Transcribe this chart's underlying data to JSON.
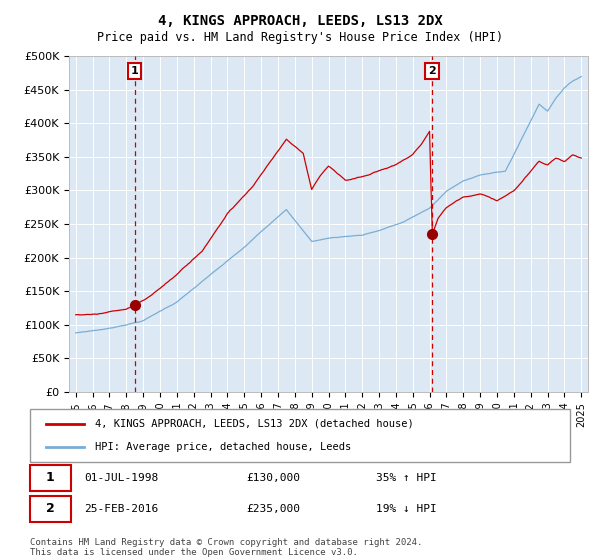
{
  "title": "4, KINGS APPROACH, LEEDS, LS13 2DX",
  "subtitle": "Price paid vs. HM Land Registry's House Price Index (HPI)",
  "bg_color": "#dce9f5",
  "red_line_color": "#cc0000",
  "blue_line_color": "#7aadd4",
  "marker_color": "#990000",
  "sale1_date_num": 1998.5,
  "sale1_price": 130000,
  "sale2_date_num": 2016.15,
  "sale2_price": 235000,
  "ylim": [
    0,
    500000
  ],
  "yticks": [
    0,
    50000,
    100000,
    150000,
    200000,
    250000,
    300000,
    350000,
    400000,
    450000,
    500000
  ],
  "xlabel_years": [
    "1995",
    "1996",
    "1997",
    "1998",
    "1999",
    "2000",
    "2001",
    "2002",
    "2003",
    "2004",
    "2005",
    "2006",
    "2007",
    "2008",
    "2009",
    "2010",
    "2011",
    "2012",
    "2013",
    "2014",
    "2015",
    "2016",
    "2017",
    "2018",
    "2019",
    "2020",
    "2021",
    "2022",
    "2023",
    "2024",
    "2025"
  ],
  "legend_red": "4, KINGS APPROACH, LEEDS, LS13 2DX (detached house)",
  "legend_blue": "HPI: Average price, detached house, Leeds",
  "footnote": "Contains HM Land Registry data © Crown copyright and database right 2024.\nThis data is licensed under the Open Government Licence v3.0.",
  "dashed_color": "#cc0000"
}
